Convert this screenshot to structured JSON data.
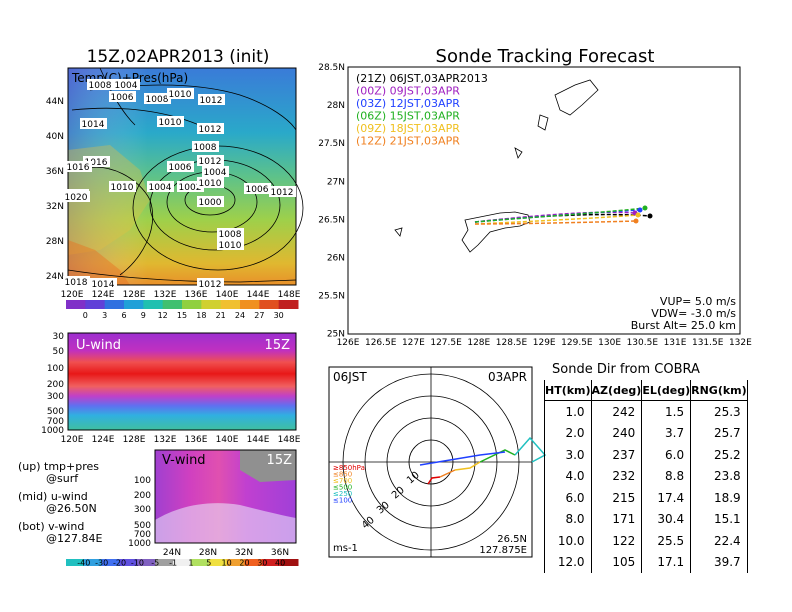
{
  "map_panel": {
    "title": "15Z,02APR2013 (init)",
    "label": "Temp(C)+Pres(hPa)",
    "lat_labels": [
      "44N",
      "40N",
      "36N",
      "32N",
      "28N",
      "24N"
    ],
    "lon_labels": [
      "120E",
      "124E",
      "128E",
      "132E",
      "136E",
      "140E",
      "144E",
      "148E"
    ],
    "isobar_labels": [
      "1008",
      "1004",
      "1006",
      "1008",
      "1010",
      "1012",
      "1014",
      "1010",
      "1012",
      "1012",
      "1016",
      "1010",
      "1008",
      "1004",
      "1006",
      "1004",
      "1002",
      "1010",
      "1008",
      "1006",
      "1000",
      "1020",
      "1012",
      "1008",
      "1010",
      "1018",
      "1014",
      "1012",
      "1016"
    ],
    "colorbar_labels": [
      "0",
      "3",
      "6",
      "9",
      "12",
      "15",
      "18",
      "21",
      "24",
      "27",
      "30"
    ]
  },
  "u_panel": {
    "label": "U-wind",
    "time": "15Z",
    "y_labels": [
      "30",
      "50",
      "100",
      "200",
      "300",
      "500",
      "700",
      "1000"
    ],
    "x_labels": [
      "120E",
      "124E",
      "128E",
      "132E",
      "136E",
      "140E",
      "144E",
      "148E"
    ]
  },
  "v_panel": {
    "label": "V-wind",
    "time": "15Z",
    "y_labels": [
      "100",
      "200",
      "300",
      "500",
      "700",
      "1000"
    ],
    "x_labels": [
      "24N",
      "28N",
      "32N",
      "36N"
    ],
    "colorbar_labels": [
      "-40",
      "-30",
      "-20",
      "-10",
      "-5",
      "-1",
      "1",
      "5",
      "10",
      "20",
      "30",
      "40"
    ]
  },
  "notes": {
    "up": "(up) tmp+pres",
    "up2": "@surf",
    "mid": "(mid) u-wind",
    "mid2": "@26.50N",
    "bot": "(bot) v-wind",
    "bot2": "@127.84E"
  },
  "tracking": {
    "title": "Sonde Tracking Forecast",
    "lat_labels": [
      "28.5N",
      "28N",
      "27.5N",
      "27N",
      "26.5N",
      "26N",
      "25.5N",
      "25N"
    ],
    "lon_labels": [
      "126E",
      "126.5E",
      "127E",
      "127.5E",
      "128E",
      "128.5E",
      "129E",
      "129.5E",
      "130E",
      "130.5E",
      "131E",
      "131.5E",
      "132E"
    ],
    "legend": [
      {
        "text": "(21Z) 06JST,03APR2013",
        "color": "#000000"
      },
      {
        "text": "(00Z) 09JST,03APR",
        "color": "#a020c0"
      },
      {
        "text": "(03Z) 12JST,03APR",
        "color": "#2040ff"
      },
      {
        "text": "(06Z) 15JST,03APR",
        "color": "#20b020"
      },
      {
        "text": "(09Z) 18JST,03APR",
        "color": "#f0c020"
      },
      {
        "text": "(12Z) 21JST,03APR",
        "color": "#f08020"
      }
    ],
    "vup": "VUP= 5.0 m/s",
    "vdw": "VDW= -3.0 m/s",
    "burst": "Burst Alt= 25.0 km"
  },
  "polar": {
    "time": "06JST",
    "date": "03APR",
    "ring_labels": [
      "10",
      "20",
      "30",
      "40"
    ],
    "unit": "ms-1",
    "lat": "26.5N",
    "lon": "127.875E",
    "levels": [
      {
        "text": "≥850hPa",
        "color": "#e00000"
      },
      {
        "text": "≤850",
        "color": "#f08020"
      },
      {
        "text": "≤700",
        "color": "#f0c020"
      },
      {
        "text": "≤500",
        "color": "#20b020"
      },
      {
        "text": "≤250",
        "color": "#20c0c0"
      },
      {
        "text": "≤100",
        "color": "#2040ff"
      }
    ]
  },
  "direction": {
    "title": "Sonde Dir from COBRA",
    "headers": [
      "HT(km)",
      "AZ(deg)",
      "EL(deg)",
      "RNG(km)"
    ],
    "rows": [
      [
        "1.0",
        "242",
        "1.5",
        "25.3"
      ],
      [
        "2.0",
        "240",
        "3.7",
        "25.7"
      ],
      [
        "3.0",
        "237",
        "6.0",
        "25.2"
      ],
      [
        "4.0",
        "232",
        "8.8",
        "23.8"
      ],
      [
        "6.0",
        "215",
        "17.4",
        "18.9"
      ],
      [
        "8.0",
        "171",
        "30.4",
        "15.1"
      ],
      [
        "10.0",
        "122",
        "25.5",
        "22.4"
      ],
      [
        "12.0",
        "105",
        "17.1",
        "39.7"
      ]
    ]
  }
}
